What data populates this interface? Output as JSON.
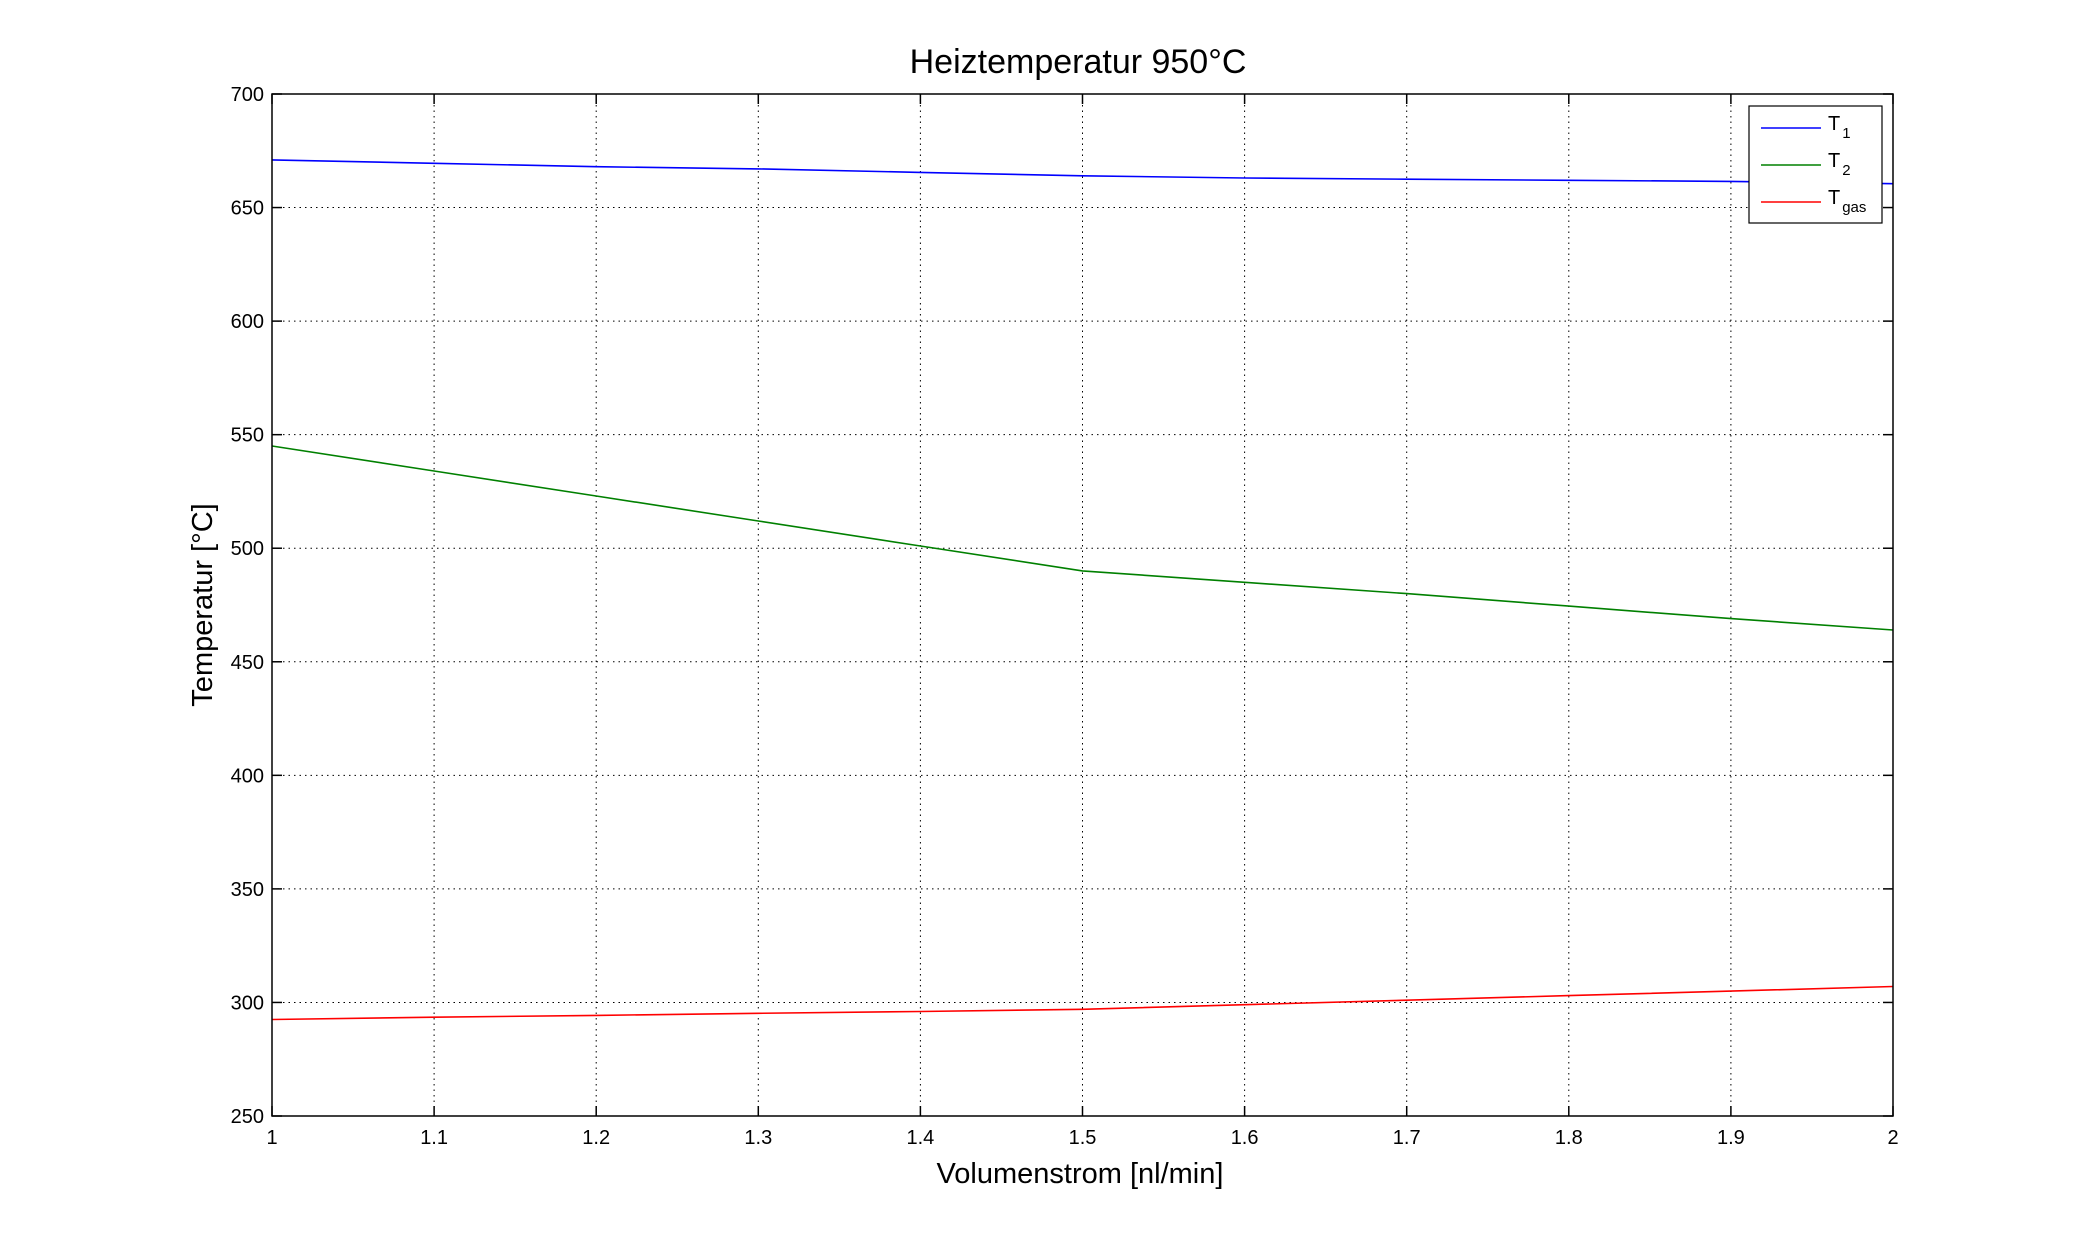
{
  "chart_data": {
    "type": "line",
    "title": "Heiztemperatur 950°C",
    "xlabel": "Volumenstrom [nl/min]",
    "ylabel": "Temperatur [°C]",
    "xlim": [
      1,
      2
    ],
    "ylim": [
      250,
      700
    ],
    "grid": true,
    "legend_position": "top-right",
    "x": [
      1.0,
      1.1,
      1.2,
      1.3,
      1.4,
      1.5,
      1.6,
      1.7,
      1.8,
      1.9,
      2.0
    ],
    "x_ticks": [
      "1",
      "1.1",
      "1.2",
      "1.3",
      "1.4",
      "1.5",
      "1.6",
      "1.7",
      "1.8",
      "1.9",
      "2"
    ],
    "y_ticks": [
      "250",
      "300",
      "350",
      "400",
      "450",
      "500",
      "550",
      "600",
      "650",
      "700"
    ],
    "series": [
      {
        "name": "T1",
        "legend_main": "T",
        "legend_sub": "1",
        "color": "#0000ff",
        "values": [
          671,
          669.5,
          668,
          667,
          665.5,
          664,
          663,
          662.5,
          662,
          661.5,
          660.5
        ]
      },
      {
        "name": "T2",
        "legend_main": "T",
        "legend_sub": "2",
        "color": "#008000",
        "values": [
          545,
          534,
          523,
          512,
          501,
          490,
          485,
          480,
          474.5,
          469,
          464
        ]
      },
      {
        "name": "Tgas",
        "legend_main": "T",
        "legend_sub": "gas",
        "color": "#ff0000",
        "values": [
          292.5,
          293.5,
          294.3,
          295.2,
          296,
          297,
          299,
          301,
          303,
          305,
          307
        ]
      }
    ]
  }
}
